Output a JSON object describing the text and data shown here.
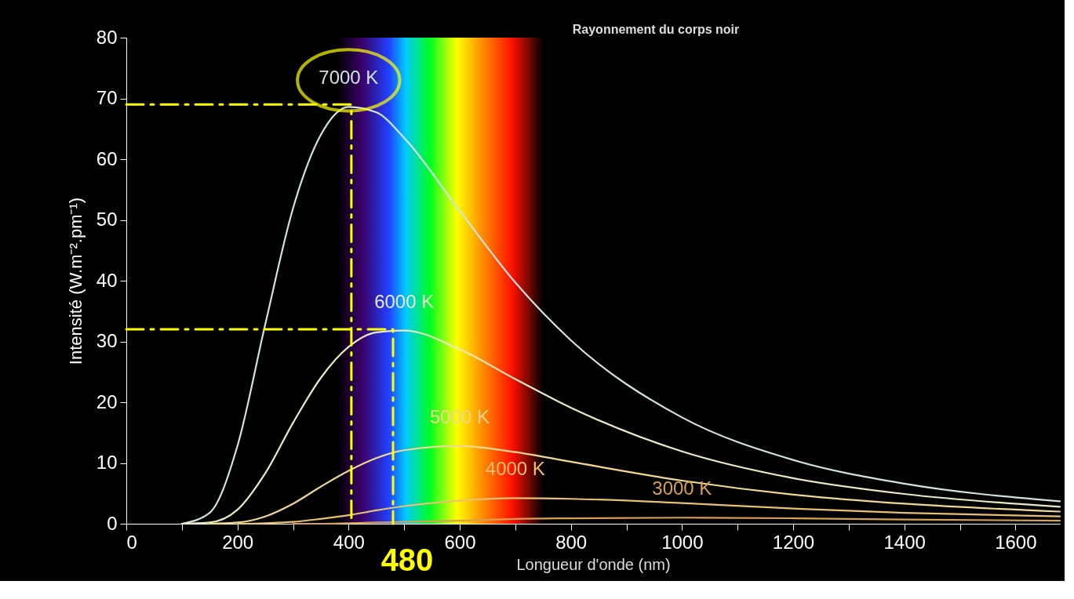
{
  "chart_data": {
    "type": "line",
    "title": "Rayonnement du corps noir",
    "xlabel": "Longueur d'onde (nm)",
    "ylabel": "Intensité (W.m⁻².pm⁻¹)",
    "xlim": [
      0,
      1680
    ],
    "ylim": [
      0,
      80
    ],
    "xticks": [
      0,
      {
        "value": 100,
        "label": null
      },
      200,
      {
        "value": 300,
        "label": null
      },
      400,
      {
        "value": 500,
        "label": null
      },
      600,
      {
        "value": 700,
        "label": null
      },
      800,
      {
        "value": 900,
        "label": null
      },
      1000,
      {
        "value": 1100,
        "label": null
      },
      1200,
      {
        "value": 1300,
        "label": null
      },
      1400,
      {
        "value": 1500,
        "label": null
      },
      1600
    ],
    "yticks": [
      0,
      10,
      20,
      30,
      40,
      50,
      60,
      70,
      80
    ],
    "grid": false,
    "bands": [
      {
        "axis": "x",
        "from": 380,
        "to": 750
      }
    ],
    "series": [
      {
        "name": "7000 K",
        "color": "#cfe3e0",
        "x": [
          100,
          150,
          200,
          250,
          300,
          350,
          400,
          450,
          500,
          600,
          700,
          800,
          1000,
          1200,
          1400,
          1680
        ],
        "values": [
          0.0,
          1.8,
          12.8,
          32.8,
          51.9,
          64.0,
          68.6,
          67.7,
          63.5,
          51.5,
          39.7,
          30.2,
          17.5,
          10.5,
          6.6,
          3.7
        ]
      },
      {
        "name": "6000 K",
        "color": "#ebe8c4",
        "x": [
          100,
          150,
          200,
          250,
          300,
          350,
          400,
          450,
          500,
          600,
          700,
          800,
          1000,
          1200,
          1400,
          1680
        ],
        "values": [
          0.0,
          0.2,
          2.3,
          8.3,
          16.6,
          24.0,
          29.1,
          31.5,
          31.8,
          28.7,
          23.8,
          19.1,
          11.9,
          7.5,
          4.9,
          2.8
        ]
      },
      {
        "name": "5000 K",
        "color": "#f0d890",
        "x": [
          150,
          200,
          250,
          300,
          350,
          400,
          450,
          500,
          600,
          700,
          800,
          1000,
          1200,
          1400,
          1680
        ],
        "values": [
          0.0,
          0.2,
          1.2,
          3.3,
          6.1,
          8.7,
          10.8,
          12.1,
          12.8,
          11.8,
          10.2,
          7.1,
          4.8,
          3.3,
          2.0
        ]
      },
      {
        "name": "4000 K",
        "color": "#e8c070",
        "x": [
          200,
          250,
          300,
          350,
          400,
          450,
          500,
          600,
          700,
          800,
          1000,
          1200,
          1400,
          1680
        ],
        "values": [
          0.0,
          0.1,
          0.3,
          0.8,
          1.4,
          2.2,
          2.9,
          3.8,
          4.2,
          4.1,
          3.4,
          2.5,
          1.8,
          1.2
        ]
      },
      {
        "name": "3000 K",
        "color": "#d8a050",
        "x": [
          300,
          350,
          400,
          450,
          500,
          600,
          700,
          800,
          1000,
          1200,
          1400,
          1680
        ],
        "values": [
          0.0,
          0.0,
          0.1,
          0.2,
          0.3,
          0.5,
          0.8,
          0.9,
          1.0,
          0.9,
          0.7,
          0.5
        ]
      },
      {
        "type": "line",
        "color": "#ffff00",
        "line_style": "dashed",
        "x": [
          0,
          405,
          405
        ],
        "values": [
          69,
          69,
          0
        ]
      },
      {
        "type": "line",
        "color": "#ffff00",
        "line_style": "dashed",
        "x": [
          0,
          480,
          480
        ],
        "values": [
          32,
          32,
          0
        ]
      }
    ],
    "annotations": [
      {
        "text": "480",
        "x": 480,
        "y": 0
      }
    ]
  }
}
